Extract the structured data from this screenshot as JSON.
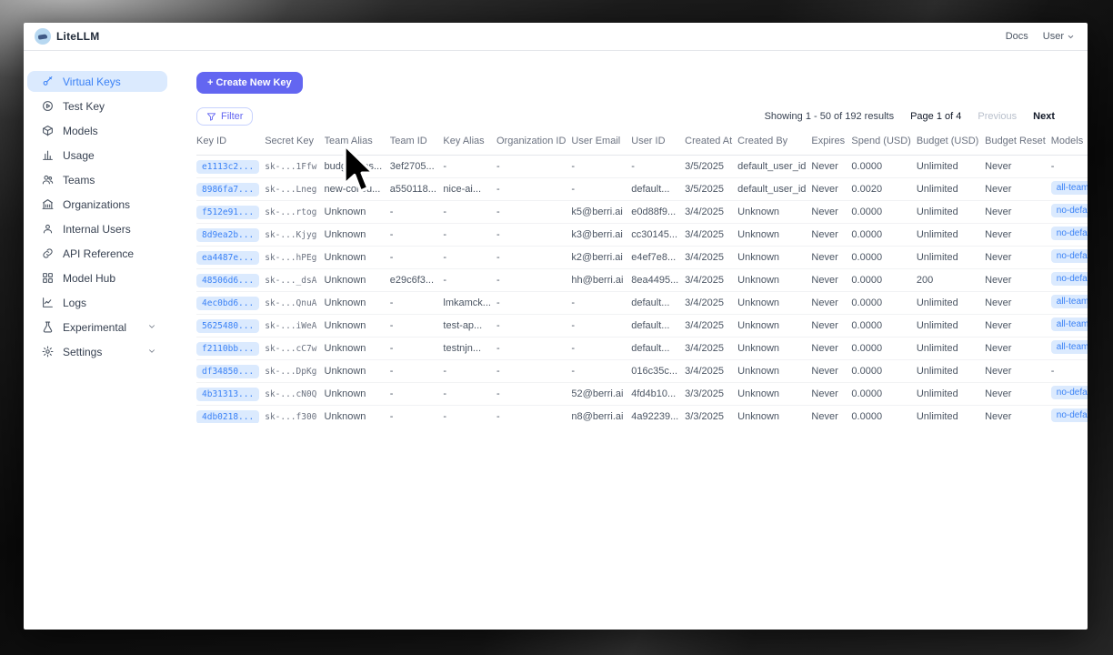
{
  "chrome": {
    "app_title": "LiteLLM",
    "nav": {
      "docs": "Docs",
      "user": "User"
    }
  },
  "sidebar": {
    "items": [
      {
        "label": "Virtual Keys",
        "icon": "key-icon",
        "active": true,
        "chevron": false
      },
      {
        "label": "Test Key",
        "icon": "play-circle-icon",
        "active": false,
        "chevron": false
      },
      {
        "label": "Models",
        "icon": "cube-icon",
        "active": false,
        "chevron": false
      },
      {
        "label": "Usage",
        "icon": "bar-chart-icon",
        "active": false,
        "chevron": false
      },
      {
        "label": "Teams",
        "icon": "teams-icon",
        "active": false,
        "chevron": false
      },
      {
        "label": "Organizations",
        "icon": "bank-icon",
        "active": false,
        "chevron": false
      },
      {
        "label": "Internal Users",
        "icon": "user-icon",
        "active": false,
        "chevron": false
      },
      {
        "label": "API Reference",
        "icon": "link-icon",
        "active": false,
        "chevron": false
      },
      {
        "label": "Model Hub",
        "icon": "grid-icon",
        "active": false,
        "chevron": false
      },
      {
        "label": "Logs",
        "icon": "line-chart-icon",
        "active": false,
        "chevron": false
      },
      {
        "label": "Experimental",
        "icon": "flask-icon",
        "active": false,
        "chevron": true
      },
      {
        "label": "Settings",
        "icon": "gear-icon",
        "active": false,
        "chevron": true
      }
    ]
  },
  "toolbar": {
    "create_button": "+ Create New Key",
    "filter_button": "Filter"
  },
  "pagination": {
    "showing": "Showing 1 - 50 of 192 results",
    "page": "Page 1 of 4",
    "previous": "Previous",
    "next": "Next"
  },
  "table": {
    "columns": [
      "Key ID",
      "Secret Key",
      "Team Alias",
      "Team ID",
      "Key Alias",
      "Organization ID",
      "User Email",
      "User ID",
      "Created At",
      "Created By",
      "Expires",
      "Spend (USD)",
      "Budget (USD)",
      "Budget Reset",
      "Models"
    ],
    "rows": [
      [
        "e1113c2...",
        "sk-...1Ffw",
        "budget_tes...",
        "3ef2705...",
        "-",
        "-",
        "-",
        "-",
        "3/5/2025",
        "default_user_id",
        "Never",
        "0.0000",
        "Unlimited",
        "Never",
        "-"
      ],
      [
        "8986fa7...",
        "sk-...Lneg",
        "new-collou...",
        "a550118...",
        "nice-ai...",
        "-",
        "-",
        "default...",
        "3/5/2025",
        "default_user_id",
        "Never",
        "0.0020",
        "Unlimited",
        "Never",
        "all-team-mod"
      ],
      [
        "f512e91...",
        "sk-...rtog",
        "Unknown",
        "-",
        "-",
        "-",
        "k5@berri.ai",
        "e0d88f9...",
        "3/4/2025",
        "Unknown",
        "Never",
        "0.0000",
        "Unlimited",
        "Never",
        "no-default"
      ],
      [
        "8d9ea2b...",
        "sk-...Kjyg",
        "Unknown",
        "-",
        "-",
        "-",
        "k3@berri.ai",
        "cc30145...",
        "3/4/2025",
        "Unknown",
        "Never",
        "0.0000",
        "Unlimited",
        "Never",
        "no-default"
      ],
      [
        "ea4487e...",
        "sk-...hPEg",
        "Unknown",
        "-",
        "-",
        "-",
        "k2@berri.ai",
        "e4ef7e8...",
        "3/4/2025",
        "Unknown",
        "Never",
        "0.0000",
        "Unlimited",
        "Never",
        "no-default"
      ],
      [
        "48506d6...",
        "sk-..._dsA",
        "Unknown",
        "e29c6f3...",
        "-",
        "-",
        "hh@berri.ai",
        "8ea4495...",
        "3/4/2025",
        "Unknown",
        "Never",
        "0.0000",
        "200",
        "Never",
        "no-default"
      ],
      [
        "4ec0bd6...",
        "sk-...QnuA",
        "Unknown",
        "-",
        "lmkamck...",
        "-",
        "-",
        "default...",
        "3/4/2025",
        "Unknown",
        "Never",
        "0.0000",
        "Unlimited",
        "Never",
        "all-team-mod"
      ],
      [
        "5625480...",
        "sk-...iWeA",
        "Unknown",
        "-",
        "test-ap...",
        "-",
        "-",
        "default...",
        "3/4/2025",
        "Unknown",
        "Never",
        "0.0000",
        "Unlimited",
        "Never",
        "all-team-mod"
      ],
      [
        "f2110bb...",
        "sk-...cC7w",
        "Unknown",
        "-",
        "testnjn...",
        "-",
        "-",
        "default...",
        "3/4/2025",
        "Unknown",
        "Never",
        "0.0000",
        "Unlimited",
        "Never",
        "all-team-mod"
      ],
      [
        "df34850...",
        "sk-...DpKg",
        "Unknown",
        "-",
        "-",
        "-",
        "-",
        "016c35c...",
        "3/4/2025",
        "Unknown",
        "Never",
        "0.0000",
        "Unlimited",
        "Never",
        "-"
      ],
      [
        "4b31313...",
        "sk-...cN0Q",
        "Unknown",
        "-",
        "-",
        "-",
        "52@berri.ai",
        "4fd4b10...",
        "3/3/2025",
        "Unknown",
        "Never",
        "0.0000",
        "Unlimited",
        "Never",
        "no-default"
      ],
      [
        "4db0218...",
        "sk-...f300",
        "Unknown",
        "-",
        "-",
        "-",
        "n8@berri.ai",
        "4a92239...",
        "3/3/2025",
        "Unknown",
        "Never",
        "0.0000",
        "Unlimited",
        "Never",
        "no-default"
      ]
    ]
  },
  "colors": {
    "accent_indigo": "#6366f1",
    "selected_blue_bg": "#dbeafe",
    "selected_blue_text": "#3b82f6"
  }
}
